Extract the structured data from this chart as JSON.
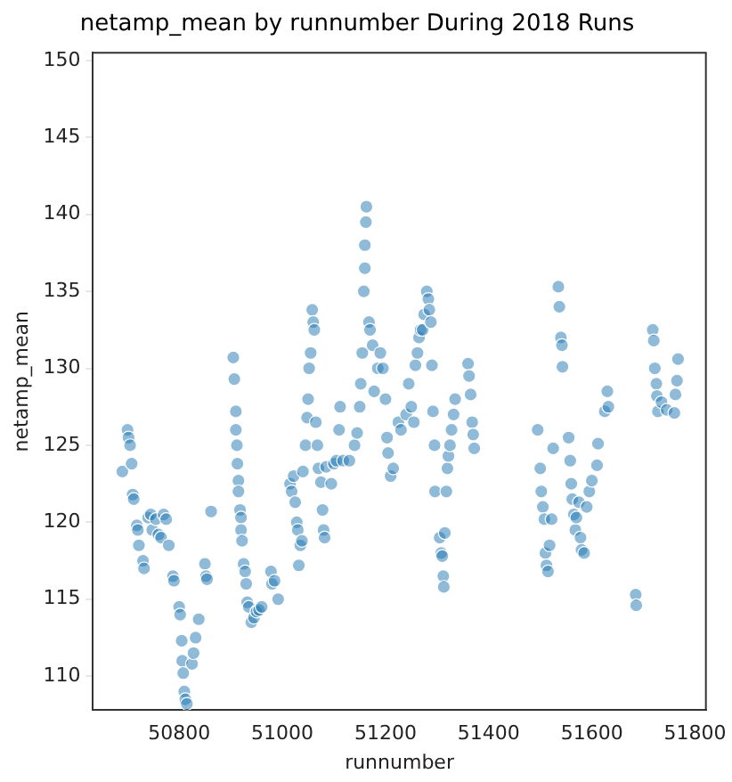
{
  "chart_data": {
    "type": "scatter",
    "title": "netamp_mean by runnumber During 2018 Runs",
    "xlabel": "runnumber",
    "ylabel": "netamp_mean",
    "xlim": [
      50633,
      51821
    ],
    "ylim": [
      107.8,
      150.5
    ],
    "xticks": [
      50800,
      51000,
      51200,
      51400,
      51600,
      51800
    ],
    "yticks": [
      110,
      115,
      120,
      125,
      130,
      135,
      140,
      145,
      150
    ],
    "grid": false,
    "legend": false,
    "marker": "circle",
    "series": [
      {
        "color": "#1f77b4",
        "x": [
          50690,
          50700,
          50702,
          50705,
          50708,
          50710,
          50712,
          50718,
          50720,
          50722,
          50730,
          50732,
          50740,
          50745,
          50748,
          50755,
          50760,
          50765,
          50770,
          50775,
          50780,
          50788,
          50790,
          50800,
          50802,
          50805,
          50806,
          50808,
          50810,
          50812,
          50815,
          50825,
          50828,
          50832,
          50838,
          50850,
          50852,
          50854,
          50862,
          50905,
          50907,
          50910,
          50910,
          50912,
          50913,
          50915,
          50915,
          50918,
          50920,
          50920,
          50922,
          50925,
          50928,
          50930,
          50932,
          50935,
          50940,
          50945,
          50950,
          50955,
          50960,
          50978,
          50980,
          50985,
          50992,
          51015,
          51018,
          51022,
          51025,
          51028,
          51030,
          51032,
          51035,
          51038,
          51040,
          51045,
          51048,
          51050,
          51052,
          51055,
          51058,
          51060,
          51062,
          51065,
          51068,
          51070,
          51075,
          51078,
          51080,
          51082,
          51085,
          51095,
          51100,
          51105,
          51110,
          51112,
          51118,
          51130,
          51140,
          51145,
          51150,
          51152,
          51155,
          51158,
          51160,
          51160,
          51162,
          51163,
          51168,
          51170,
          51175,
          51178,
          51185,
          51190,
          51195,
          51200,
          51203,
          51205,
          51210,
          51215,
          51225,
          51230,
          51240,
          51245,
          51250,
          51255,
          51258,
          51262,
          51265,
          51268,
          51272,
          51275,
          51280,
          51283,
          51285,
          51288,
          51290,
          51292,
          51295,
          51296,
          51305,
          51308,
          51310,
          51312,
          51313,
          51315,
          51318,
          51320,
          51322,
          51325,
          51328,
          51332,
          51335,
          51360,
          51362,
          51365,
          51368,
          51370,
          51372,
          51495,
          51500,
          51502,
          51505,
          51508,
          51510,
          51512,
          51515,
          51518,
          51522,
          51525,
          51535,
          51537,
          51540,
          51542,
          51543,
          51555,
          51558,
          51560,
          51562,
          51565,
          51568,
          51570,
          51575,
          51578,
          51580,
          51585,
          51590,
          51595,
          51600,
          51610,
          51612,
          51625,
          51630,
          51632,
          51685,
          51686,
          51718,
          51720,
          51722,
          51725,
          51726,
          51728,
          51735,
          51745,
          51760,
          51762,
          51765,
          51767
        ],
        "values": [
          123.3,
          126,
          125.5,
          125,
          123.8,
          121.8,
          121.5,
          119.8,
          119.5,
          118.5,
          117.5,
          117,
          120.3,
          120.5,
          119.5,
          120.2,
          119.2,
          119,
          120.5,
          120.2,
          118.5,
          116.5,
          116.2,
          114.5,
          114,
          112.3,
          111,
          110.2,
          109,
          108.5,
          108.2,
          110.8,
          111.5,
          112.5,
          113.7,
          117.3,
          116.5,
          116.3,
          120.7,
          130.7,
          129.3,
          127.2,
          126,
          125,
          123.8,
          122.7,
          122,
          120.8,
          120.3,
          119.5,
          118.8,
          117.3,
          116.8,
          116,
          114.8,
          114.5,
          113.5,
          113.8,
          114.2,
          114.3,
          114.5,
          116.8,
          116,
          116.2,
          115,
          122.5,
          122,
          123,
          121.3,
          120,
          119.5,
          117.2,
          118.5,
          118.8,
          123.3,
          125,
          126.8,
          128,
          130,
          131,
          133.8,
          133,
          132.5,
          126.5,
          125,
          123.5,
          122.6,
          120.8,
          119.5,
          119,
          123.6,
          122.5,
          123.8,
          124,
          126,
          127.5,
          124,
          124,
          125,
          125.8,
          127.5,
          129,
          131,
          135,
          136.5,
          138,
          139.5,
          140.5,
          133,
          132.5,
          131.5,
          128.5,
          130,
          131,
          130,
          128,
          125.5,
          124.5,
          123,
          123.5,
          126.5,
          126,
          127,
          129,
          127.5,
          126.5,
          130.2,
          131,
          132,
          132.5,
          132.5,
          133.5,
          135,
          134.5,
          133.8,
          133,
          130.2,
          127.2,
          125,
          122,
          119,
          118,
          117.8,
          116.5,
          115.8,
          119.3,
          122,
          123.5,
          124.3,
          125,
          126,
          127,
          128,
          130.3,
          129.5,
          128.3,
          126.5,
          125.7,
          124.8,
          126,
          123.5,
          122,
          121,
          120.2,
          118,
          117.2,
          116.8,
          118.5,
          120.2,
          124.8,
          135.3,
          134,
          132,
          131.5,
          130.1,
          125.5,
          124,
          122.5,
          121.5,
          120.5,
          119.5,
          120.3,
          121.3,
          119,
          118.2,
          118,
          121,
          122,
          122.7,
          123.7,
          125.1,
          127.2,
          128.5,
          127.5,
          115.3,
          114.6,
          132.5,
          131.8,
          130,
          129,
          128.2,
          127.2,
          127.8,
          127.3,
          127.1,
          128.3,
          129.2,
          130.6
        ]
      }
    ]
  }
}
